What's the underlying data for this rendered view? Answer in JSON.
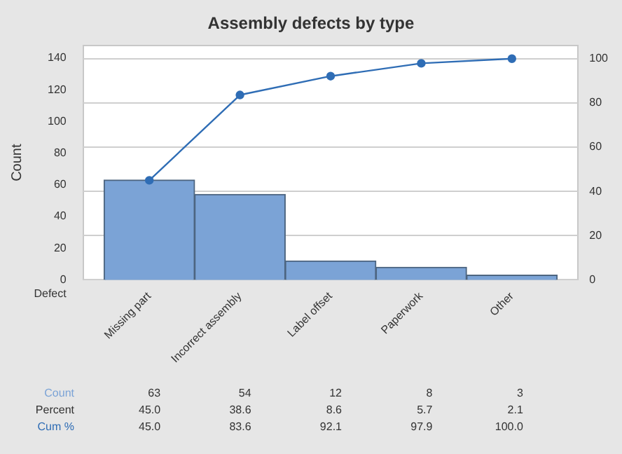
{
  "chart_data": {
    "type": "bar",
    "title": "Assembly defects by type",
    "xlabel": "Defect",
    "ylabel": "Count",
    "categories": [
      "Missing part",
      "Incorrect assembly",
      "Label offset",
      "Paperwork",
      "Other"
    ],
    "series": [
      {
        "name": "Count",
        "color": "#7ba3d6",
        "values": [
          63,
          54,
          12,
          8,
          3
        ],
        "value_labels": [
          "63",
          "54",
          "12",
          "8",
          "3"
        ]
      },
      {
        "name": "Cum %",
        "type": "line",
        "axis": "y2",
        "color": "#2f6db5",
        "values": [
          45.0,
          83.6,
          92.1,
          97.9,
          100.0
        ],
        "value_labels": [
          "45.0",
          "83.6",
          "92.1",
          "97.9",
          "100.0"
        ]
      }
    ],
    "annotations": [
      "Percent",
      "45.0",
      "38.6",
      "8.6",
      "5.7",
      "2.1"
    ],
    "ylim": [
      0,
      148
    ],
    "yticks": [
      0,
      20,
      40,
      60,
      80,
      100,
      120,
      140
    ],
    "y2lim": [
      0,
      106
    ],
    "y2ticks": [
      0,
      20,
      40,
      60,
      80,
      100
    ],
    "grid": "y2",
    "legend": false,
    "marker": "circle",
    "line_style": "solid"
  }
}
